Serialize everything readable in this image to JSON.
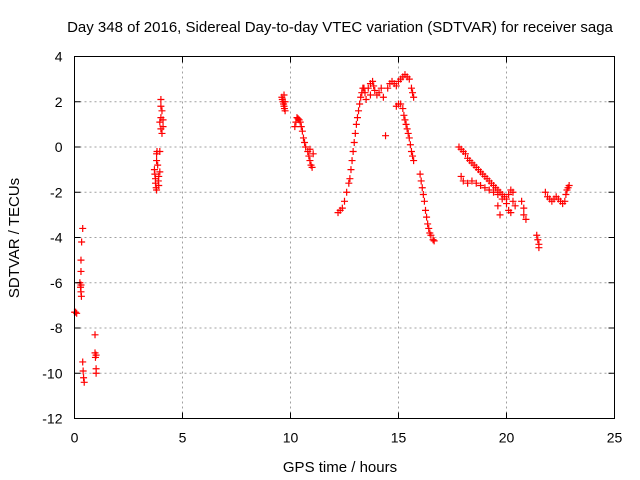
{
  "chart_data": {
    "type": "scatter",
    "title": "Day 348 of 2016, Sidereal Day-to-day VTEC variation (SDTVAR) for receiver saga",
    "xlabel": "GPS time / hours",
    "ylabel": "SDTVAR / TECUs",
    "xlim": [
      0,
      25
    ],
    "ylim": [
      -12,
      4
    ],
    "xticks": [
      0,
      5,
      10,
      15,
      20,
      25
    ],
    "yticks": [
      -12,
      -10,
      -8,
      -6,
      -4,
      -2,
      0,
      2,
      4
    ],
    "grid": true,
    "marker": "+",
    "color": "#ff0000",
    "series": [
      {
        "name": "SDTVAR",
        "segments": [
          [
            [
              0.0,
              -7.3
            ],
            [
              0.05,
              -7.3
            ],
            [
              0.1,
              -7.35
            ]
          ],
          [
            [
              0.25,
              -6.0
            ],
            [
              0.28,
              -6.2
            ],
            [
              0.3,
              -6.4
            ],
            [
              0.32,
              -6.6
            ],
            [
              0.3,
              -5.5
            ],
            [
              0.3,
              -5.0
            ],
            [
              0.33,
              -4.2
            ],
            [
              0.38,
              -3.6
            ],
            [
              0.3,
              -6.1
            ]
          ],
          [
            [
              0.38,
              -9.5
            ],
            [
              0.4,
              -9.9
            ],
            [
              0.42,
              -10.2
            ],
            [
              0.45,
              -10.4
            ]
          ],
          [
            [
              0.95,
              -8.3
            ],
            [
              0.95,
              -9.1
            ],
            [
              0.97,
              -9.3
            ],
            [
              1.0,
              -9.8
            ],
            [
              1.0,
              -10.0
            ],
            [
              1.0,
              -9.2
            ]
          ],
          [
            [
              3.7,
              -1.0
            ],
            [
              3.72,
              -1.2
            ],
            [
              3.75,
              -1.4
            ],
            [
              3.75,
              -1.6
            ],
            [
              3.78,
              -1.8
            ],
            [
              3.8,
              -1.9
            ],
            [
              3.8,
              -0.6
            ],
            [
              3.8,
              -0.3
            ],
            [
              3.82,
              -0.2
            ],
            [
              3.85,
              -0.8
            ],
            [
              3.88,
              -1.5
            ],
            [
              3.9,
              -1.7
            ],
            [
              3.9,
              -1.3
            ],
            [
              3.95,
              -1.1
            ],
            [
              3.95,
              -0.2
            ]
          ],
          [
            [
              3.95,
              1.1
            ],
            [
              4.0,
              1.3
            ],
            [
              4.0,
              0.8
            ],
            [
              4.05,
              1.6
            ],
            [
              4.0,
              1.8
            ],
            [
              4.0,
              2.1
            ],
            [
              4.05,
              0.6
            ],
            [
              4.1,
              0.9
            ],
            [
              4.1,
              1.2
            ]
          ],
          [
            [
              9.6,
              2.2
            ],
            [
              9.62,
              2.1
            ],
            [
              9.65,
              2.0
            ],
            [
              9.68,
              1.9
            ],
            [
              9.7,
              1.8
            ],
            [
              9.72,
              1.7
            ],
            [
              9.75,
              2.0
            ],
            [
              9.75,
              1.6
            ],
            [
              9.7,
              2.3
            ]
          ],
          [
            [
              10.2,
              0.9
            ],
            [
              10.25,
              1.1
            ],
            [
              10.3,
              1.3
            ],
            [
              10.35,
              1.25
            ],
            [
              10.4,
              1.2
            ],
            [
              10.45,
              1.1
            ],
            [
              10.5,
              0.9
            ],
            [
              10.55,
              0.7
            ],
            [
              10.6,
              0.4
            ],
            [
              10.65,
              0.2
            ],
            [
              10.7,
              0.0
            ],
            [
              10.8,
              -0.2
            ],
            [
              10.85,
              -0.4
            ],
            [
              10.9,
              -0.6
            ],
            [
              10.95,
              -0.8
            ],
            [
              11.0,
              -0.9
            ],
            [
              10.9,
              -0.1
            ],
            [
              11.05,
              -0.3
            ]
          ],
          [
            [
              12.2,
              -2.9
            ],
            [
              12.3,
              -2.8
            ],
            [
              12.4,
              -2.7
            ],
            [
              12.5,
              -2.4
            ],
            [
              12.6,
              -2.0
            ],
            [
              12.7,
              -1.6
            ],
            [
              12.75,
              -1.4
            ],
            [
              12.8,
              -1.0
            ],
            [
              12.85,
              -0.6
            ],
            [
              12.9,
              -0.2
            ],
            [
              12.95,
              0.2
            ],
            [
              13.0,
              0.6
            ],
            [
              13.05,
              1.0
            ],
            [
              13.1,
              1.3
            ],
            [
              13.15,
              1.6
            ],
            [
              13.2,
              1.9
            ],
            [
              13.25,
              2.2
            ],
            [
              13.3,
              2.4
            ],
            [
              13.35,
              2.6
            ],
            [
              13.4,
              2.6
            ],
            [
              13.45,
              2.4
            ],
            [
              13.5,
              2.1
            ]
          ],
          [
            [
              13.6,
              2.6
            ],
            [
              13.7,
              2.8
            ],
            [
              13.8,
              2.9
            ],
            [
              13.85,
              2.7
            ],
            [
              13.9,
              2.5
            ],
            [
              14.0,
              2.3
            ],
            [
              14.1,
              2.4
            ],
            [
              14.2,
              2.6
            ],
            [
              14.3,
              2.2
            ],
            [
              13.7,
              2.3
            ],
            [
              14.4,
              0.5
            ]
          ],
          [
            [
              14.5,
              2.6
            ],
            [
              14.6,
              2.8
            ],
            [
              14.7,
              2.9
            ],
            [
              14.8,
              2.8
            ],
            [
              14.9,
              2.7
            ],
            [
              15.0,
              2.9
            ],
            [
              15.1,
              3.0
            ],
            [
              15.2,
              3.1
            ],
            [
              15.3,
              3.2
            ],
            [
              15.4,
              3.1
            ],
            [
              15.5,
              3.0
            ],
            [
              15.6,
              2.6
            ],
            [
              15.65,
              2.4
            ],
            [
              15.7,
              2.2
            ]
          ],
          [
            [
              14.9,
              1.8
            ],
            [
              15.0,
              1.9
            ],
            [
              15.1,
              1.9
            ],
            [
              15.2,
              1.7
            ],
            [
              15.25,
              1.4
            ],
            [
              15.3,
              1.2
            ],
            [
              15.35,
              1.0
            ],
            [
              15.4,
              0.8
            ],
            [
              15.45,
              0.6
            ],
            [
              15.5,
              0.4
            ],
            [
              15.55,
              0.1
            ],
            [
              15.6,
              -0.2
            ],
            [
              15.65,
              -0.4
            ],
            [
              15.7,
              -0.6
            ]
          ],
          [
            [
              16.0,
              -1.2
            ],
            [
              16.05,
              -1.5
            ],
            [
              16.1,
              -1.8
            ],
            [
              16.15,
              -2.1
            ],
            [
              16.2,
              -2.4
            ],
            [
              16.25,
              -2.8
            ],
            [
              16.3,
              -3.1
            ],
            [
              16.35,
              -3.4
            ],
            [
              16.4,
              -3.6
            ],
            [
              16.45,
              -3.8
            ],
            [
              16.5,
              -3.9
            ],
            [
              16.6,
              -4.1
            ],
            [
              16.65,
              -4.15
            ]
          ],
          [
            [
              17.8,
              0.0
            ],
            [
              17.9,
              -0.1
            ],
            [
              18.0,
              -0.2
            ],
            [
              18.1,
              -0.3
            ],
            [
              18.2,
              -0.5
            ],
            [
              18.3,
              -0.6
            ],
            [
              18.4,
              -0.7
            ],
            [
              18.5,
              -0.8
            ],
            [
              18.6,
              -0.9
            ],
            [
              18.7,
              -1.0
            ],
            [
              18.8,
              -1.1
            ],
            [
              18.9,
              -1.2
            ],
            [
              19.0,
              -1.3
            ],
            [
              19.1,
              -1.4
            ],
            [
              19.2,
              -1.5
            ],
            [
              19.3,
              -1.6
            ],
            [
              19.4,
              -1.7
            ],
            [
              19.5,
              -1.8
            ],
            [
              19.6,
              -1.9
            ],
            [
              19.7,
              -2.0
            ],
            [
              19.8,
              -2.1
            ],
            [
              19.9,
              -2.2
            ]
          ],
          [
            [
              17.9,
              -1.3
            ],
            [
              18.0,
              -1.5
            ],
            [
              18.2,
              -1.6
            ],
            [
              18.4,
              -1.5
            ],
            [
              18.6,
              -1.6
            ],
            [
              18.8,
              -1.7
            ],
            [
              19.0,
              -1.8
            ],
            [
              19.2,
              -1.9
            ],
            [
              19.4,
              -2.0
            ],
            [
              19.6,
              -2.1
            ],
            [
              19.8,
              -2.3
            ],
            [
              20.0,
              -2.5
            ],
            [
              20.1,
              -2.8
            ],
            [
              20.2,
              -2.9
            ],
            [
              19.6,
              -2.6
            ],
            [
              19.7,
              -3.0
            ]
          ],
          [
            [
              20.0,
              -2.3
            ],
            [
              20.1,
              -2.1
            ],
            [
              20.2,
              -1.9
            ],
            [
              20.3,
              -2.0
            ],
            [
              20.3,
              -2.4
            ],
            [
              20.4,
              -2.6
            ]
          ],
          [
            [
              20.7,
              -2.4
            ],
            [
              20.8,
              -2.7
            ],
            [
              20.8,
              -3.0
            ],
            [
              20.9,
              -3.2
            ]
          ],
          [
            [
              21.4,
              -3.9
            ],
            [
              21.45,
              -4.1
            ],
            [
              21.5,
              -4.3
            ],
            [
              21.5,
              -4.45
            ]
          ],
          [
            [
              21.8,
              -2.0
            ],
            [
              21.9,
              -2.2
            ],
            [
              22.0,
              -2.3
            ],
            [
              22.1,
              -2.4
            ],
            [
              22.2,
              -2.3
            ],
            [
              22.3,
              -2.2
            ],
            [
              22.4,
              -2.3
            ],
            [
              22.5,
              -2.4
            ],
            [
              22.6,
              -2.5
            ],
            [
              22.7,
              -2.4
            ],
            [
              22.75,
              -2.1
            ],
            [
              22.8,
              -1.9
            ],
            [
              22.85,
              -1.8
            ],
            [
              22.9,
              -1.7
            ]
          ]
        ]
      }
    ]
  }
}
